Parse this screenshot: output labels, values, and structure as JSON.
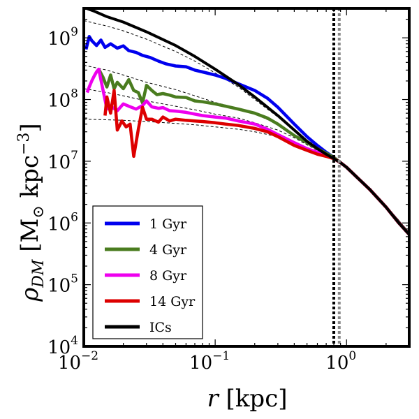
{
  "chart_data": {
    "type": "line",
    "xscale": "log",
    "yscale": "log",
    "xlim": [
      0.01,
      3.0
    ],
    "ylim": [
      10000,
      3000000000
    ],
    "xlabel": "r [kpc]",
    "ylabel": "ρ_DM [M_⊙ kpc^-3]",
    "x_ticks": [
      {
        "base": "10",
        "exp": "−2",
        "value": 0.01
      },
      {
        "base": "10",
        "exp": "−1",
        "value": 0.1
      },
      {
        "base": "10",
        "exp": "0",
        "value": 1
      }
    ],
    "y_ticks": [
      {
        "base": "10",
        "exp": "4",
        "value": 10000
      },
      {
        "base": "10",
        "exp": "5",
        "value": 100000
      },
      {
        "base": "10",
        "exp": "6",
        "value": 1000000
      },
      {
        "base": "10",
        "exp": "7",
        "value": 10000000
      },
      {
        "base": "10",
        "exp": "8",
        "value": 100000000
      },
      {
        "base": "10",
        "exp": "9",
        "value": 1000000000
      }
    ],
    "legend_position": "lower-left",
    "series": [
      {
        "name": "1 Gyr",
        "color": "#0000ee",
        "x": [
          0.0104,
          0.011,
          0.0115,
          0.0125,
          0.0135,
          0.0145,
          0.016,
          0.018,
          0.02,
          0.022,
          0.025,
          0.028,
          0.032,
          0.037,
          0.042,
          0.05,
          0.06,
          0.07,
          0.08,
          0.1,
          0.12,
          0.15,
          0.2,
          0.25,
          0.3,
          0.4,
          0.5,
          0.6,
          0.7,
          0.8,
          0.9,
          1.0,
          1.2,
          1.5,
          2.0,
          2.5,
          3.0
        ],
        "y": [
          650000000,
          1050000000,
          900000000,
          750000000,
          920000000,
          700000000,
          800000000,
          680000000,
          740000000,
          620000000,
          580000000,
          520000000,
          480000000,
          420000000,
          380000000,
          350000000,
          340000000,
          300000000,
          280000000,
          250000000,
          220000000,
          180000000,
          140000000,
          105000000,
          75000000,
          40000000,
          25000000,
          18000000,
          14000000,
          11500000,
          9500000,
          8000000,
          5500000,
          3500000,
          1800000,
          1000000,
          650000
        ]
      },
      {
        "name": "4 Gyr",
        "color": "#4a7c1f",
        "x": [
          0.013,
          0.014,
          0.015,
          0.016,
          0.017,
          0.018,
          0.02,
          0.022,
          0.024,
          0.026,
          0.028,
          0.03,
          0.033,
          0.036,
          0.04,
          0.045,
          0.05,
          0.06,
          0.07,
          0.08,
          0.1,
          0.12,
          0.15,
          0.2,
          0.25,
          0.3,
          0.4,
          0.5,
          0.6,
          0.7,
          0.8,
          0.9,
          1.0,
          1.2,
          1.5,
          2.0,
          2.5,
          3.0
        ],
        "y": [
          310000000,
          230000000,
          160000000,
          250000000,
          150000000,
          190000000,
          150000000,
          210000000,
          140000000,
          130000000,
          88000000,
          170000000,
          140000000,
          120000000,
          125000000,
          118000000,
          110000000,
          108000000,
          95000000,
          92000000,
          85000000,
          78000000,
          70000000,
          60000000,
          50000000,
          40000000,
          26000000,
          20000000,
          16000000,
          13500000,
          11500000,
          9500000,
          8000000,
          5500000,
          3500000,
          1800000,
          1000000,
          650000
        ]
      },
      {
        "name": "8 Gyr",
        "color": "#ee00ee",
        "x": [
          0.0106,
          0.011,
          0.0115,
          0.012,
          0.0125,
          0.013,
          0.015,
          0.016,
          0.018,
          0.02,
          0.022,
          0.025,
          0.028,
          0.03,
          0.033,
          0.037,
          0.04,
          0.045,
          0.05,
          0.06,
          0.07,
          0.08,
          0.1,
          0.12,
          0.15,
          0.2,
          0.25,
          0.3,
          0.4,
          0.5,
          0.6,
          0.7,
          0.8,
          0.9,
          1.0,
          1.2,
          1.5,
          2.0,
          2.5,
          3.0
        ],
        "y": [
          130000000,
          160000000,
          200000000,
          240000000,
          280000000,
          310000000,
          70000000,
          78000000,
          66000000,
          85000000,
          78000000,
          70000000,
          80000000,
          95000000,
          76000000,
          72000000,
          74000000,
          66000000,
          65000000,
          62000000,
          58000000,
          55000000,
          52000000,
          50000000,
          45000000,
          40000000,
          33000000,
          27000000,
          20000000,
          16000000,
          14000000,
          12500000,
          11000000,
          9500000,
          8000000,
          5500000,
          3500000,
          1800000,
          1000000,
          650000
        ]
      },
      {
        "name": "14 Gyr",
        "color": "#dd0000",
        "x": [
          0.0145,
          0.015,
          0.016,
          0.017,
          0.018,
          0.0195,
          0.021,
          0.0225,
          0.024,
          0.026,
          0.028,
          0.03,
          0.033,
          0.037,
          0.04,
          0.045,
          0.05,
          0.06,
          0.07,
          0.08,
          0.1,
          0.12,
          0.15,
          0.2,
          0.25,
          0.3,
          0.4,
          0.5,
          0.6,
          0.7,
          0.8,
          0.9,
          1.0,
          1.2,
          1.5,
          2.0,
          2.5,
          3.0
        ],
        "y": [
          55000000,
          110000000,
          60000000,
          140000000,
          32000000,
          45000000,
          36000000,
          40000000,
          12000000,
          33000000,
          75000000,
          48000000,
          48000000,
          43000000,
          52000000,
          45000000,
          48000000,
          46000000,
          45000000,
          44000000,
          42000000,
          40000000,
          38000000,
          34000000,
          30000000,
          25000000,
          18000000,
          15000000,
          13000000,
          12000000,
          11000000,
          9500000,
          8000000,
          5500000,
          3500000,
          1800000,
          1000000,
          650000
        ]
      },
      {
        "name": "ICs",
        "color": "#000000",
        "x": [
          0.0105,
          0.012,
          0.015,
          0.02,
          0.03,
          0.05,
          0.07,
          0.1,
          0.15,
          0.2,
          0.3,
          0.4,
          0.5,
          0.6,
          0.7,
          0.8,
          0.9,
          1.0,
          1.2,
          1.5,
          2.0,
          2.5,
          3.0
        ],
        "y": [
          3000000000,
          2700000000,
          2200000000,
          1800000000,
          1250000000,
          750000000,
          500000000,
          310000000,
          175000000,
          110000000,
          55000000,
          32000000,
          21000000,
          16000000,
          13000000,
          11000000,
          9500000,
          8000000,
          5500000,
          3500000,
          1800000,
          1000000,
          650000
        ]
      }
    ],
    "fit_curves": [
      {
        "color": "#000000",
        "style": "dashed",
        "x": [
          0.01,
          0.015,
          0.02,
          0.03,
          0.05,
          0.07,
          0.1,
          0.15,
          0.2,
          0.3,
          0.4,
          0.5,
          0.6,
          0.7,
          0.8,
          0.9,
          1.0,
          1.2,
          1.5,
          2.0,
          2.5,
          3.0
        ],
        "y": [
          1900000000,
          1550000000,
          1300000000,
          950000000,
          600000000,
          420000000,
          270000000,
          160000000,
          100000000,
          52000000,
          32000000,
          22000000,
          17000000,
          13500000,
          11200000,
          9600000,
          8200000,
          5800000,
          3600000,
          1900000,
          1100000,
          700000
        ]
      },
      {
        "color": "#000000",
        "style": "dashed",
        "x": [
          0.01,
          0.015,
          0.02,
          0.03,
          0.05,
          0.07,
          0.1,
          0.15,
          0.2,
          0.3,
          0.4,
          0.5,
          0.6,
          0.7,
          0.8,
          0.9,
          1.0,
          1.2,
          1.5,
          2.0,
          2.5,
          3.0
        ],
        "y": [
          360000000,
          300000000,
          250000000,
          190000000,
          145000000,
          115000000,
          90000000,
          72000000,
          58000000,
          40000000,
          27000000,
          20000000,
          15500000,
          13000000,
          11000000,
          9500000,
          8100000,
          5700000,
          3600000,
          1900000,
          1100000,
          700000
        ]
      },
      {
        "color": "#000000",
        "style": "dashed",
        "x": [
          0.01,
          0.015,
          0.02,
          0.03,
          0.05,
          0.07,
          0.1,
          0.15,
          0.2,
          0.3,
          0.4,
          0.5,
          0.6,
          0.7,
          0.8,
          0.9,
          1.0,
          1.2,
          1.5,
          2.0,
          2.5,
          3.0
        ],
        "y": [
          150000000,
          130000000,
          115000000,
          95000000,
          78000000,
          68000000,
          58000000,
          50000000,
          42000000,
          32000000,
          24000000,
          18500000,
          15000000,
          12500000,
          10800000,
          9400000,
          8000000,
          5700000,
          3600000,
          1900000,
          1100000,
          700000
        ]
      },
      {
        "color": "#000000",
        "style": "dashed",
        "x": [
          0.01,
          0.015,
          0.02,
          0.03,
          0.05,
          0.07,
          0.1,
          0.15,
          0.2,
          0.3,
          0.4,
          0.5,
          0.6,
          0.7,
          0.8,
          0.9,
          1.0,
          1.2,
          1.5,
          2.0,
          2.5,
          3.0
        ],
        "y": [
          48000000,
          47000000,
          46000000,
          44000000,
          41000000,
          39000000,
          36000000,
          33000000,
          30000000,
          25000000,
          20000000,
          16500000,
          14000000,
          12000000,
          10500000,
          9200000,
          7900000,
          5600000,
          3500000,
          1900000,
          1100000,
          700000
        ]
      }
    ],
    "vertical_lines": [
      {
        "x": 0.8,
        "color": "#000000",
        "style": "dotted"
      },
      {
        "x": 0.88,
        "color": "#888888",
        "style": "dotted"
      }
    ]
  }
}
